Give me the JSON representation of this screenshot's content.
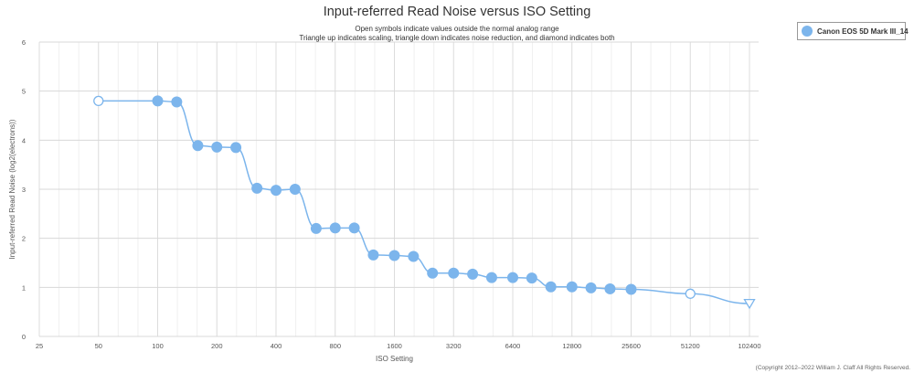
{
  "chart_data": {
    "type": "line",
    "title": "Input-referred Read Noise versus ISO Setting",
    "subtitle_lines": [
      "Open symbols indicate values outside the normal analog range",
      "Triangle up indicates scaling, triangle down indicates noise reduction, and diamond indicates both"
    ],
    "xlabel": "ISO Setting",
    "ylabel": "Input-referred Read Noise (log2(electrons))",
    "x_scale": "log2",
    "xlim": [
      25,
      102400
    ],
    "ylim": [
      0,
      6
    ],
    "x_ticks": [
      25,
      50,
      100,
      200,
      400,
      800,
      1600,
      3200,
      6400,
      12800,
      25600,
      51200,
      102400
    ],
    "y_ticks": [
      0,
      1,
      2,
      3,
      4,
      5,
      6
    ],
    "grid": true,
    "legend_position": "top-right",
    "series": [
      {
        "name": "Canon EOS 5D Mark III_14",
        "color": "#7cb5ec",
        "points": [
          {
            "x": 50,
            "y": 4.8,
            "marker": "open-circle"
          },
          {
            "x": 100,
            "y": 4.8,
            "marker": "circle"
          },
          {
            "x": 125,
            "y": 4.78,
            "marker": "circle"
          },
          {
            "x": 160,
            "y": 3.89,
            "marker": "circle"
          },
          {
            "x": 200,
            "y": 3.86,
            "marker": "circle"
          },
          {
            "x": 250,
            "y": 3.85,
            "marker": "circle"
          },
          {
            "x": 320,
            "y": 3.02,
            "marker": "circle"
          },
          {
            "x": 400,
            "y": 2.98,
            "marker": "circle"
          },
          {
            "x": 500,
            "y": 3.0,
            "marker": "circle"
          },
          {
            "x": 640,
            "y": 2.2,
            "marker": "circle"
          },
          {
            "x": 800,
            "y": 2.21,
            "marker": "circle"
          },
          {
            "x": 1000,
            "y": 2.21,
            "marker": "circle"
          },
          {
            "x": 1250,
            "y": 1.66,
            "marker": "circle"
          },
          {
            "x": 1600,
            "y": 1.65,
            "marker": "circle"
          },
          {
            "x": 2000,
            "y": 1.63,
            "marker": "circle"
          },
          {
            "x": 2500,
            "y": 1.29,
            "marker": "circle"
          },
          {
            "x": 3200,
            "y": 1.29,
            "marker": "circle"
          },
          {
            "x": 4000,
            "y": 1.27,
            "marker": "circle"
          },
          {
            "x": 5000,
            "y": 1.2,
            "marker": "circle"
          },
          {
            "x": 6400,
            "y": 1.2,
            "marker": "circle"
          },
          {
            "x": 8000,
            "y": 1.19,
            "marker": "circle"
          },
          {
            "x": 10000,
            "y": 1.01,
            "marker": "circle"
          },
          {
            "x": 12800,
            "y": 1.01,
            "marker": "circle"
          },
          {
            "x": 16000,
            "y": 0.99,
            "marker": "circle"
          },
          {
            "x": 20000,
            "y": 0.97,
            "marker": "circle"
          },
          {
            "x": 25600,
            "y": 0.96,
            "marker": "circle"
          },
          {
            "x": 51200,
            "y": 0.87,
            "marker": "open-circle"
          },
          {
            "x": 102400,
            "y": 0.67,
            "marker": "open-triangle-down"
          }
        ]
      }
    ]
  },
  "legend": {
    "label": "Canon EOS 5D Mark III_14"
  },
  "copyright": "(Copyright 2012–2022 William J. Claff All Rights Reserved."
}
